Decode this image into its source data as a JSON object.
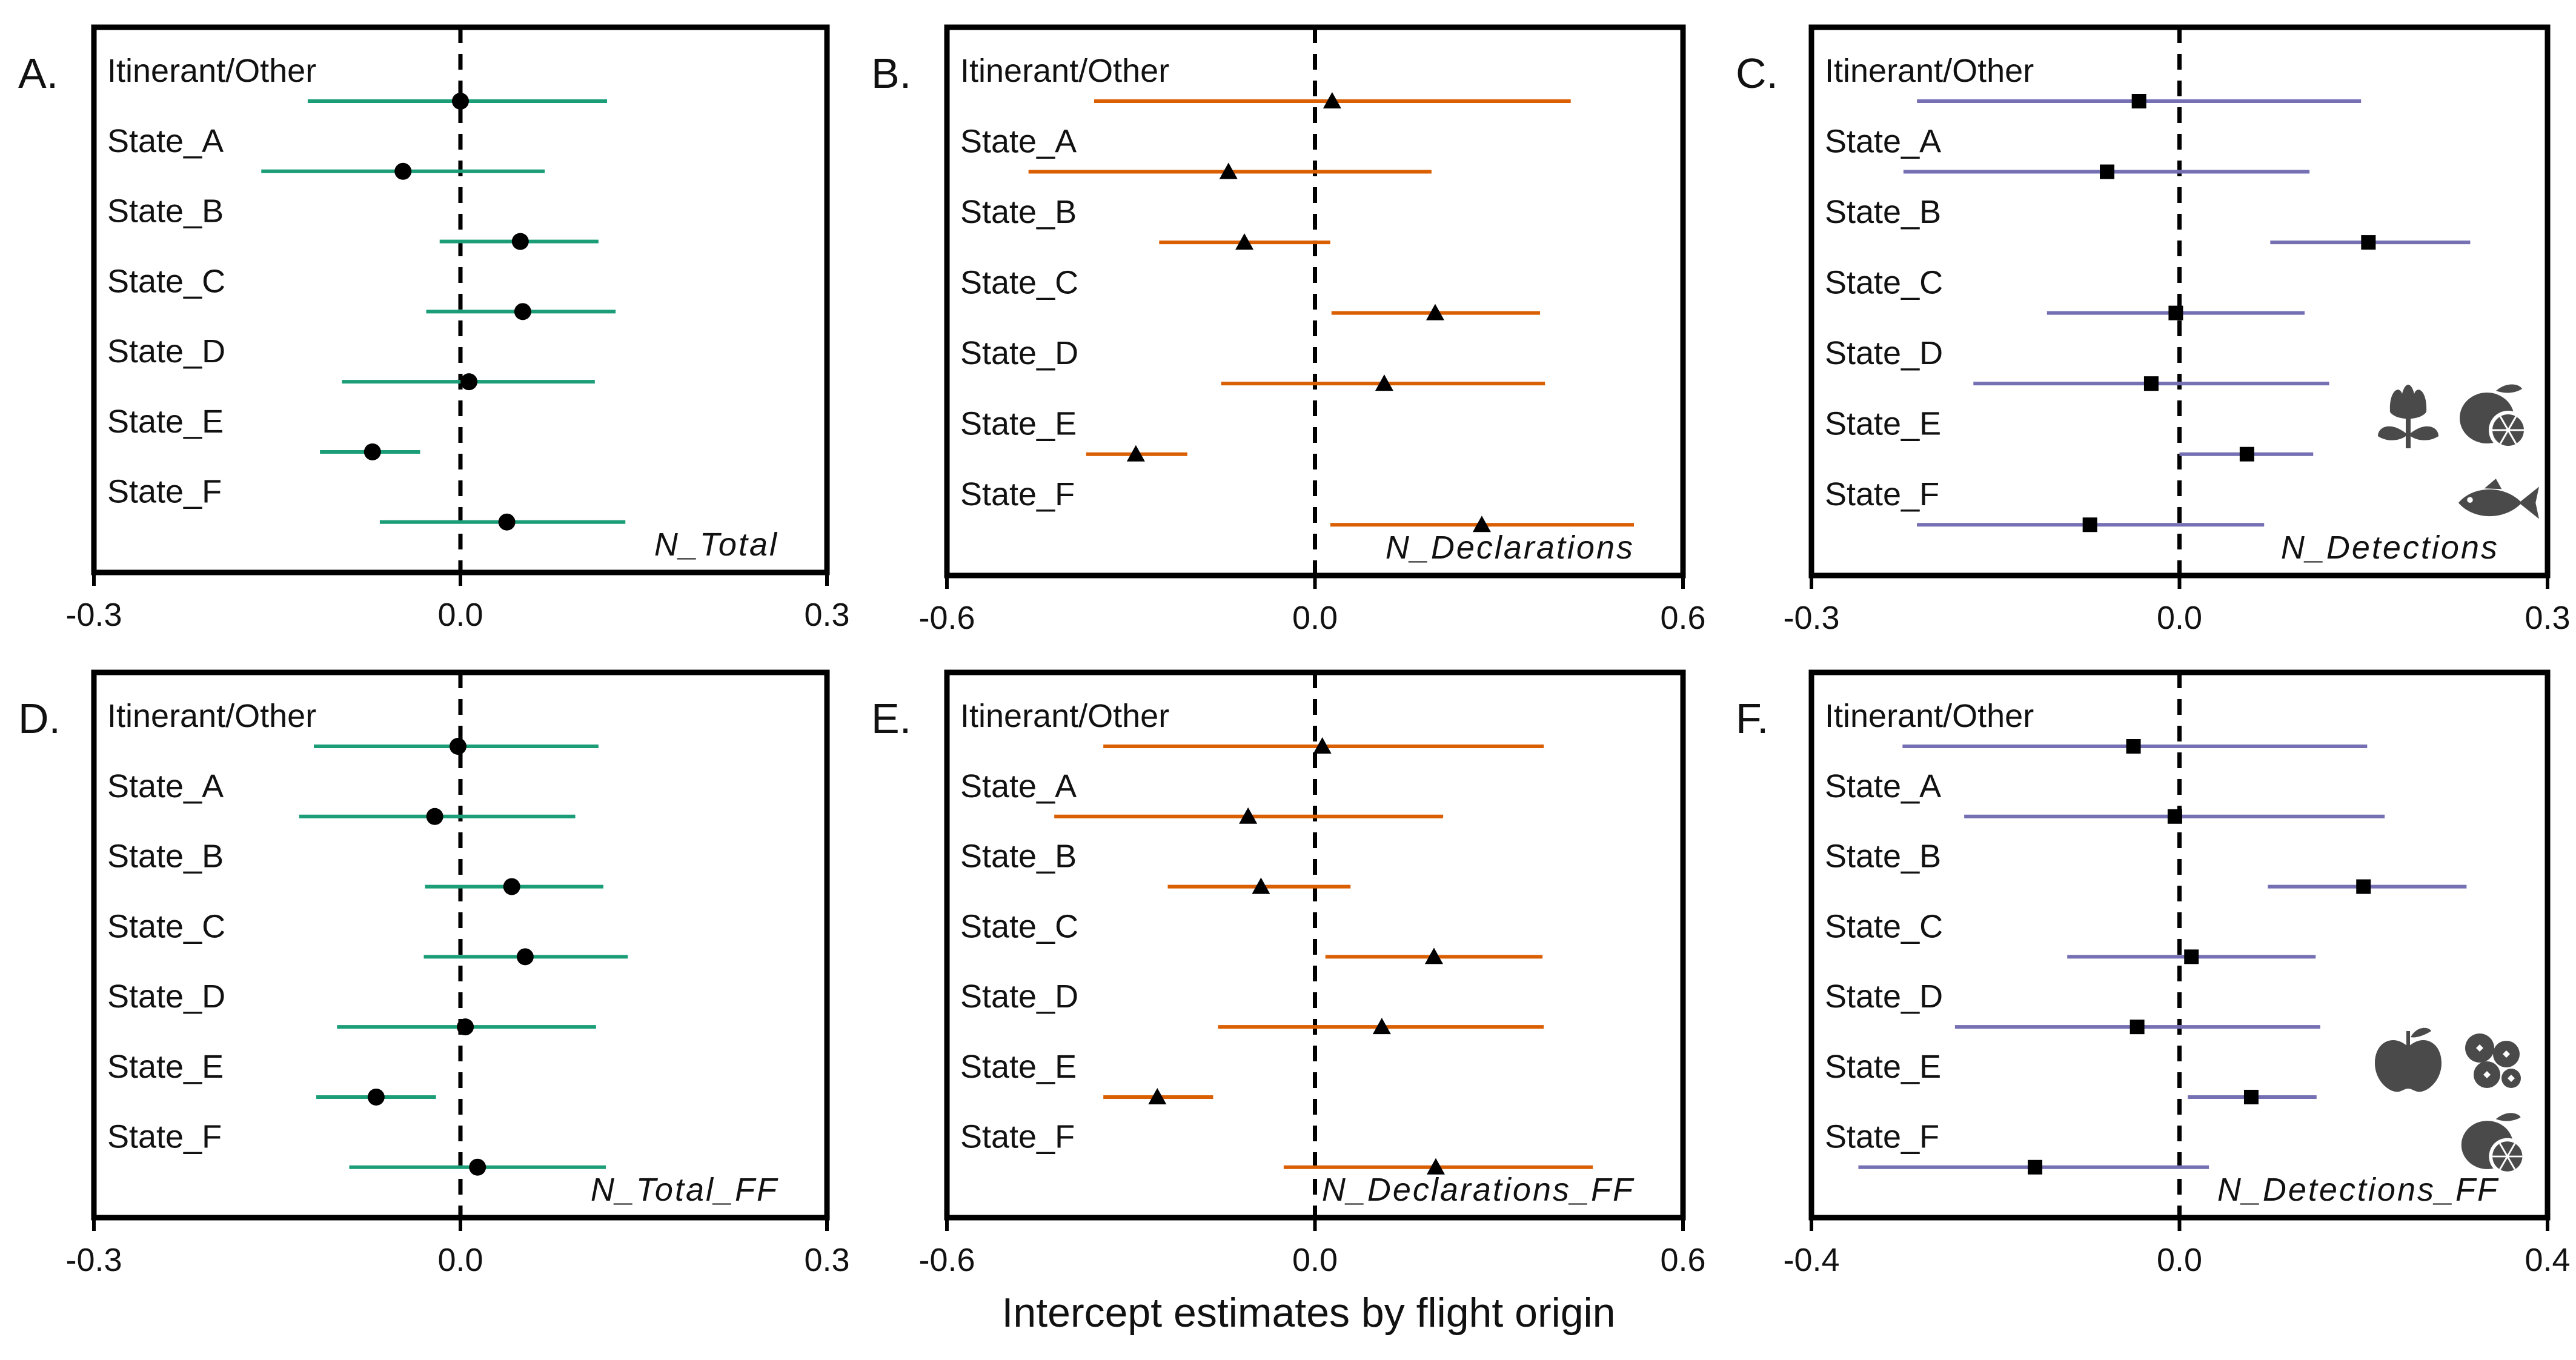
{
  "figure": {
    "xlabel": "Intercept estimates by flight origin"
  },
  "colors": {
    "green": "#1b9e77",
    "orange": "#d95f02",
    "purple": "#7570b3"
  },
  "chart_data": [
    {
      "panel": "A.",
      "type": "scatter",
      "style": "forest",
      "series_label": "N_Total",
      "marker": "circle",
      "color": "#1b9e77",
      "xlim": [
        -0.3,
        0.3
      ],
      "xticks": [
        "-0.3",
        "0.0",
        "0.3"
      ],
      "icons": [],
      "categories": [
        "Itinerant/Other",
        "State_A",
        "State_B",
        "State_C",
        "State_D",
        "State_E",
        "State_F"
      ],
      "estimate": [
        0.0,
        -0.047,
        0.049,
        0.051,
        0.007,
        -0.072,
        0.038
      ],
      "lower": [
        -0.125,
        -0.163,
        -0.017,
        -0.028,
        -0.097,
        -0.115,
        -0.066
      ],
      "upper": [
        0.12,
        0.069,
        0.113,
        0.127,
        0.11,
        -0.033,
        0.135
      ]
    },
    {
      "panel": "B.",
      "type": "scatter",
      "style": "forest",
      "series_label": "N_Declarations",
      "marker": "triangle",
      "color": "#d95f02",
      "xlim": [
        -0.6,
        0.6
      ],
      "xticks": [
        "-0.6",
        "0.0",
        "0.6"
      ],
      "icons": [],
      "categories": [
        "Itinerant/Other",
        "State_A",
        "State_B",
        "State_C",
        "State_D",
        "State_E",
        "State_F"
      ],
      "estimate": [
        0.028,
        -0.141,
        -0.115,
        0.196,
        0.113,
        -0.292,
        0.272
      ],
      "lower": [
        -0.36,
        -0.467,
        -0.254,
        0.027,
        -0.153,
        -0.373,
        0.025
      ],
      "upper": [
        0.417,
        0.19,
        0.025,
        0.367,
        0.375,
        -0.208,
        0.52
      ]
    },
    {
      "panel": "C.",
      "type": "scatter",
      "style": "forest",
      "series_label": "N_Detections",
      "marker": "square",
      "color": "#7570b3",
      "xlim": [
        -0.3,
        0.3
      ],
      "xticks": [
        "-0.3",
        "0.0",
        "0.3"
      ],
      "icons": [
        "flower-icon",
        "citrus-icon",
        "fish-icon"
      ],
      "categories": [
        "Itinerant/Other",
        "State_A",
        "State_B",
        "State_C",
        "State_D",
        "State_E",
        "State_F"
      ],
      "estimate": [
        -0.033,
        -0.059,
        0.154,
        -0.003,
        -0.023,
        0.055,
        -0.073
      ],
      "lower": [
        -0.214,
        -0.225,
        0.074,
        -0.108,
        -0.168,
        0.0,
        -0.214
      ],
      "upper": [
        0.148,
        0.106,
        0.237,
        0.102,
        0.122,
        0.109,
        0.069
      ]
    },
    {
      "panel": "D.",
      "type": "scatter",
      "style": "forest",
      "series_label": "N_Total_FF",
      "marker": "circle",
      "color": "#1b9e77",
      "xlim": [
        -0.3,
        0.3
      ],
      "xticks": [
        "-0.3",
        "0.0",
        "0.3"
      ],
      "icons": [],
      "categories": [
        "Itinerant/Other",
        "State_A",
        "State_B",
        "State_C",
        "State_D",
        "State_E",
        "State_F"
      ],
      "estimate": [
        -0.002,
        -0.021,
        0.042,
        0.053,
        0.004,
        -0.069,
        0.014
      ],
      "lower": [
        -0.12,
        -0.132,
        -0.029,
        -0.03,
        -0.101,
        -0.118,
        -0.091
      ],
      "upper": [
        0.113,
        0.094,
        0.117,
        0.137,
        0.111,
        -0.02,
        0.119
      ]
    },
    {
      "panel": "E.",
      "type": "scatter",
      "style": "forest",
      "series_label": "N_Declarations_FF",
      "marker": "triangle",
      "color": "#d95f02",
      "xlim": [
        -0.6,
        0.6
      ],
      "xticks": [
        "-0.6",
        "0.0",
        "0.6"
      ],
      "icons": [],
      "categories": [
        "Itinerant/Other",
        "State_A",
        "State_B",
        "State_C",
        "State_D",
        "State_E",
        "State_F"
      ],
      "estimate": [
        0.012,
        -0.109,
        -0.088,
        0.194,
        0.109,
        -0.257,
        0.197
      ],
      "lower": [
        -0.345,
        -0.425,
        -0.24,
        0.017,
        -0.158,
        -0.345,
        -0.051
      ],
      "upper": [
        0.373,
        0.209,
        0.058,
        0.371,
        0.373,
        -0.166,
        0.453
      ]
    },
    {
      "panel": "F.",
      "type": "scatter",
      "style": "forest",
      "series_label": "N_Detections_FF",
      "marker": "square",
      "color": "#7570b3",
      "xlim": [
        -0.4,
        0.4
      ],
      "xticks": [
        "-0.4",
        "0.0",
        "0.4"
      ],
      "icons": [
        "apple-icon",
        "berries-icon",
        "citrus-icon"
      ],
      "categories": [
        "Itinerant/Other",
        "State_A",
        "State_B",
        "State_C",
        "State_D",
        "State_E",
        "State_F"
      ],
      "estimate": [
        -0.05,
        -0.005,
        0.2,
        0.013,
        -0.046,
        0.078,
        -0.157
      ],
      "lower": [
        -0.301,
        -0.234,
        0.096,
        -0.122,
        -0.244,
        0.009,
        -0.349
      ],
      "upper": [
        0.204,
        0.223,
        0.312,
        0.148,
        0.153,
        0.149,
        0.032
      ]
    }
  ]
}
